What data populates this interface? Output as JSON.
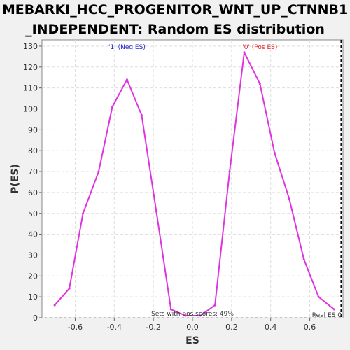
{
  "colors": {
    "series": "#e033e0",
    "neg_label": "#2222cc",
    "pos_label": "#dd2222",
    "gridline": "#dddddd",
    "plot_bg": "#ffffff"
  },
  "chart_data": {
    "type": "line",
    "title_line1": "MEBARKI_HCC_PROGENITOR_WNT_UP_CTNNB1",
    "title_line2": "_INDEPENDENT: Random ES distribution",
    "xlabel": "ES",
    "ylabel": "P(ES)",
    "xlim": [
      -0.77,
      0.77
    ],
    "ylim": [
      0,
      133
    ],
    "xticks": [
      -0.6,
      -0.4,
      -0.2,
      0.0,
      0.2,
      0.4,
      0.6
    ],
    "xtick_labels": [
      "-0.6",
      "-0.4",
      "-0.2",
      "0.0",
      "0.2",
      "0.4",
      "0.6"
    ],
    "yticks": [
      0,
      10,
      20,
      30,
      40,
      50,
      60,
      70,
      80,
      90,
      100,
      110,
      120,
      130
    ],
    "grid": true,
    "series": [
      {
        "x": [
          -0.705,
          -0.63,
          -0.56,
          -0.48,
          -0.41,
          -0.335,
          -0.26,
          -0.185,
          -0.11,
          -0.035,
          0.04,
          0.115,
          0.19,
          0.265,
          0.345,
          0.42,
          0.495,
          0.57,
          0.645,
          0.725
        ],
        "y": [
          6,
          14,
          50,
          70,
          101,
          114,
          97,
          51,
          4,
          1,
          1,
          6,
          70,
          127,
          112,
          79,
          57,
          28,
          10,
          4
        ]
      }
    ],
    "neg_label": "'1' (Neg ES)",
    "pos_label": "'0' (Pos ES)",
    "pos_scores_text": "Sets with pos scores: 49%",
    "real_es_text": "Real ES 0",
    "real_es_x": 0.76
  }
}
